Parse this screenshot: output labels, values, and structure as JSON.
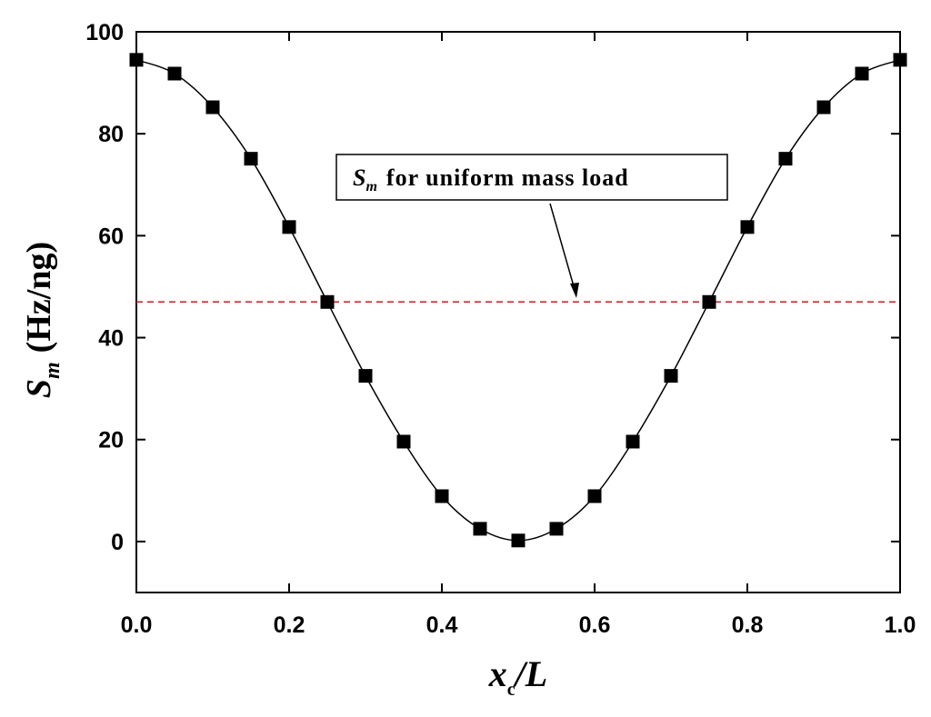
{
  "chart_data": {
    "type": "line",
    "x_label": {
      "symbol": "x",
      "subscript": "c",
      "text": "/L"
    },
    "y_label": {
      "symbol": "S",
      "subscript": "m",
      "text": "(Hz/ng)"
    },
    "x": [
      0,
      0.05,
      0.1,
      0.15,
      0.2,
      0.25,
      0.3,
      0.35,
      0.4,
      0.45,
      0.5,
      0.55,
      0.6,
      0.65,
      0.7,
      0.75,
      0.8,
      0.85,
      0.9,
      0.95,
      1
    ],
    "series": [
      {
        "color": "#000000",
        "marker": "square",
        "values": [
          94.5,
          91.8,
          85.2,
          75.1,
          61.7,
          47,
          32.5,
          19.6,
          8.9,
          2.5,
          0.2,
          2.5,
          8.9,
          19.6,
          32.5,
          47,
          61.7,
          75.1,
          85.2,
          91.8,
          94.5
        ]
      }
    ],
    "reference_line": {
      "value": 47,
      "color": "#cc3333",
      "style": "dashed"
    },
    "annotation": {
      "symbol": "S",
      "subscript": "m",
      "text": "for uniform mass load"
    },
    "xlim": [
      0,
      1
    ],
    "ylim": [
      -10,
      100
    ],
    "xticks": [
      {
        "value": 0,
        "label": "0.0"
      },
      0.2,
      0.4,
      0.6,
      0.8,
      {
        "value": 1,
        "label": "1.0"
      }
    ],
    "yticks": [
      0,
      20,
      40,
      60,
      80,
      100
    ],
    "grid": false
  }
}
